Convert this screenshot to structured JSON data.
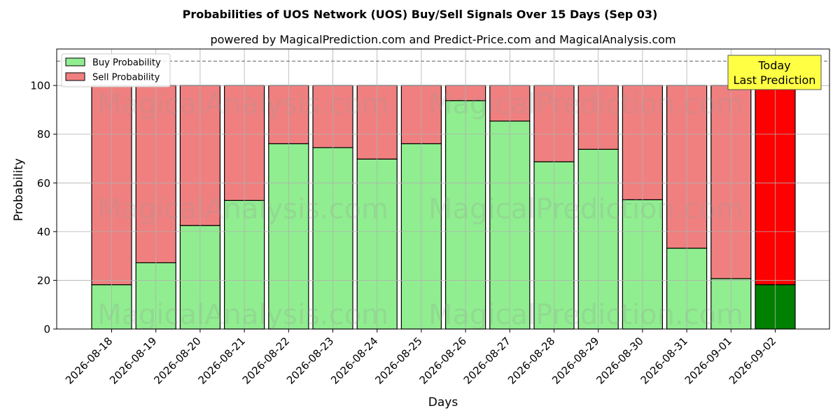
{
  "chart_data": {
    "type": "bar",
    "stacked": true,
    "title": "Probabilities of UOS Network (UOS) Buy/Sell Signals Over 15 Days (Sep 03)",
    "subtitle": "powered by MagicalPrediction.com and Predict-Price.com and MagicalAnalysis.com",
    "xlabel": "Days",
    "ylabel": "Probability",
    "ylim": [
      0,
      115
    ],
    "yticks": [
      0,
      20,
      40,
      60,
      80,
      100
    ],
    "reference_line": 110,
    "grid": true,
    "legend_position": "top-left",
    "categories": [
      "2026-08-18",
      "2026-08-19",
      "2026-08-20",
      "2026-08-21",
      "2026-08-22",
      "2026-08-23",
      "2026-08-24",
      "2026-08-25",
      "2026-08-26",
      "2026-08-27",
      "2026-08-28",
      "2026-08-29",
      "2026-08-30",
      "2026-08-31",
      "2026-09-01",
      "2026-09-02"
    ],
    "series": [
      {
        "name": "Buy Probability",
        "color": "#90ee90",
        "values": [
          18.2,
          27.2,
          42.5,
          52.8,
          76.1,
          74.5,
          69.8,
          76.1,
          93.8,
          85.4,
          68.7,
          73.8,
          53.1,
          33.2,
          20.7,
          18.2
        ]
      },
      {
        "name": "Sell Probability",
        "color": "#f08080",
        "values": [
          81.8,
          72.8,
          57.5,
          47.2,
          23.9,
          25.5,
          30.2,
          23.9,
          6.2,
          14.6,
          31.3,
          26.2,
          46.9,
          66.8,
          79.3,
          81.8
        ]
      }
    ],
    "highlight": {
      "index": 15,
      "buy_color": "#008000",
      "sell_color": "#ff0000"
    },
    "annotation": {
      "line1": "Today",
      "line2": "Last Prediction",
      "background": "#ffff44"
    },
    "watermarks": [
      "MagicalAnalysis.com",
      "MagicalPrediction.com"
    ]
  }
}
